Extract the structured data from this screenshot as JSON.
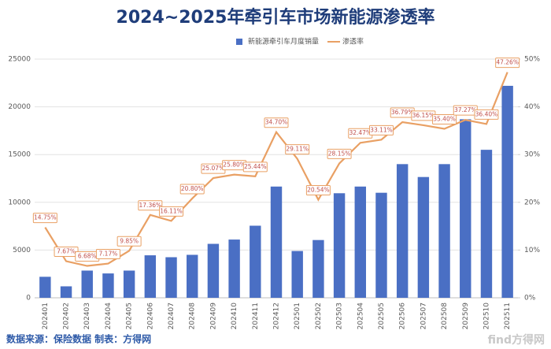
{
  "chart_data": {
    "type": "bar-line",
    "title": "2024~2025年牵引车市场新能源渗透率",
    "categories": [
      "202401",
      "202402",
      "202403",
      "202404",
      "202405",
      "202406",
      "202407",
      "202408",
      "202409",
      "202410",
      "202411",
      "202412",
      "202501",
      "202502",
      "202503",
      "202504",
      "202505",
      "202506",
      "202507",
      "202508",
      "202509",
      "202510",
      "202511"
    ],
    "series": [
      {
        "name": "新能源牵引车月度销量",
        "color": "#4a6fc4",
        "type": "bar",
        "values": [
          2200,
          1200,
          2850,
          2550,
          2850,
          4450,
          4250,
          4500,
          5650,
          6100,
          7550,
          11650,
          4900,
          6050,
          10950,
          11650,
          11000,
          14000,
          12650,
          14000,
          18700,
          15500,
          22200
        ]
      },
      {
        "name": "渗透率",
        "color": "#e9a064",
        "type": "line",
        "axis": "y2",
        "values": [
          14.75,
          7.67,
          6.68,
          7.17,
          9.85,
          17.36,
          16.11,
          20.8,
          25.07,
          25.8,
          25.44,
          34.7,
          29.11,
          20.54,
          28.15,
          32.47,
          33.11,
          36.79,
          36.15,
          35.4,
          37.27,
          36.4,
          47.26
        ],
        "value_labels": [
          "14.75%",
          "7.67%",
          "6.68%",
          "7.17%",
          "9.85%",
          "17.36%",
          "16.11%",
          "20.80%",
          "25.07%",
          "25.80%",
          "25.44%",
          "34.70%",
          "29.11%",
          "20.54%",
          "28.15%",
          "32.47%",
          "33.11%",
          "36.79%",
          "36.15%",
          "35.40%",
          "37.27%",
          "36.40%",
          "47.26%"
        ]
      }
    ],
    "ylim": [
      0,
      25000
    ],
    "yticks": [
      0,
      5000,
      10000,
      15000,
      20000,
      25000
    ],
    "y2lim": [
      0,
      50
    ],
    "y2ticks": [
      {
        "value": 0,
        "label": "0%"
      },
      {
        "value": 10,
        "label": "10%"
      },
      {
        "value": 20,
        "label": "20%"
      },
      {
        "value": 30,
        "label": "30%"
      },
      {
        "value": 40,
        "label": "40%"
      },
      {
        "value": 50,
        "label": "50%"
      }
    ],
    "grid": true,
    "legend": "top",
    "source": "数据来源：保险数据  制表：方得网",
    "watermark": "find方得网"
  }
}
